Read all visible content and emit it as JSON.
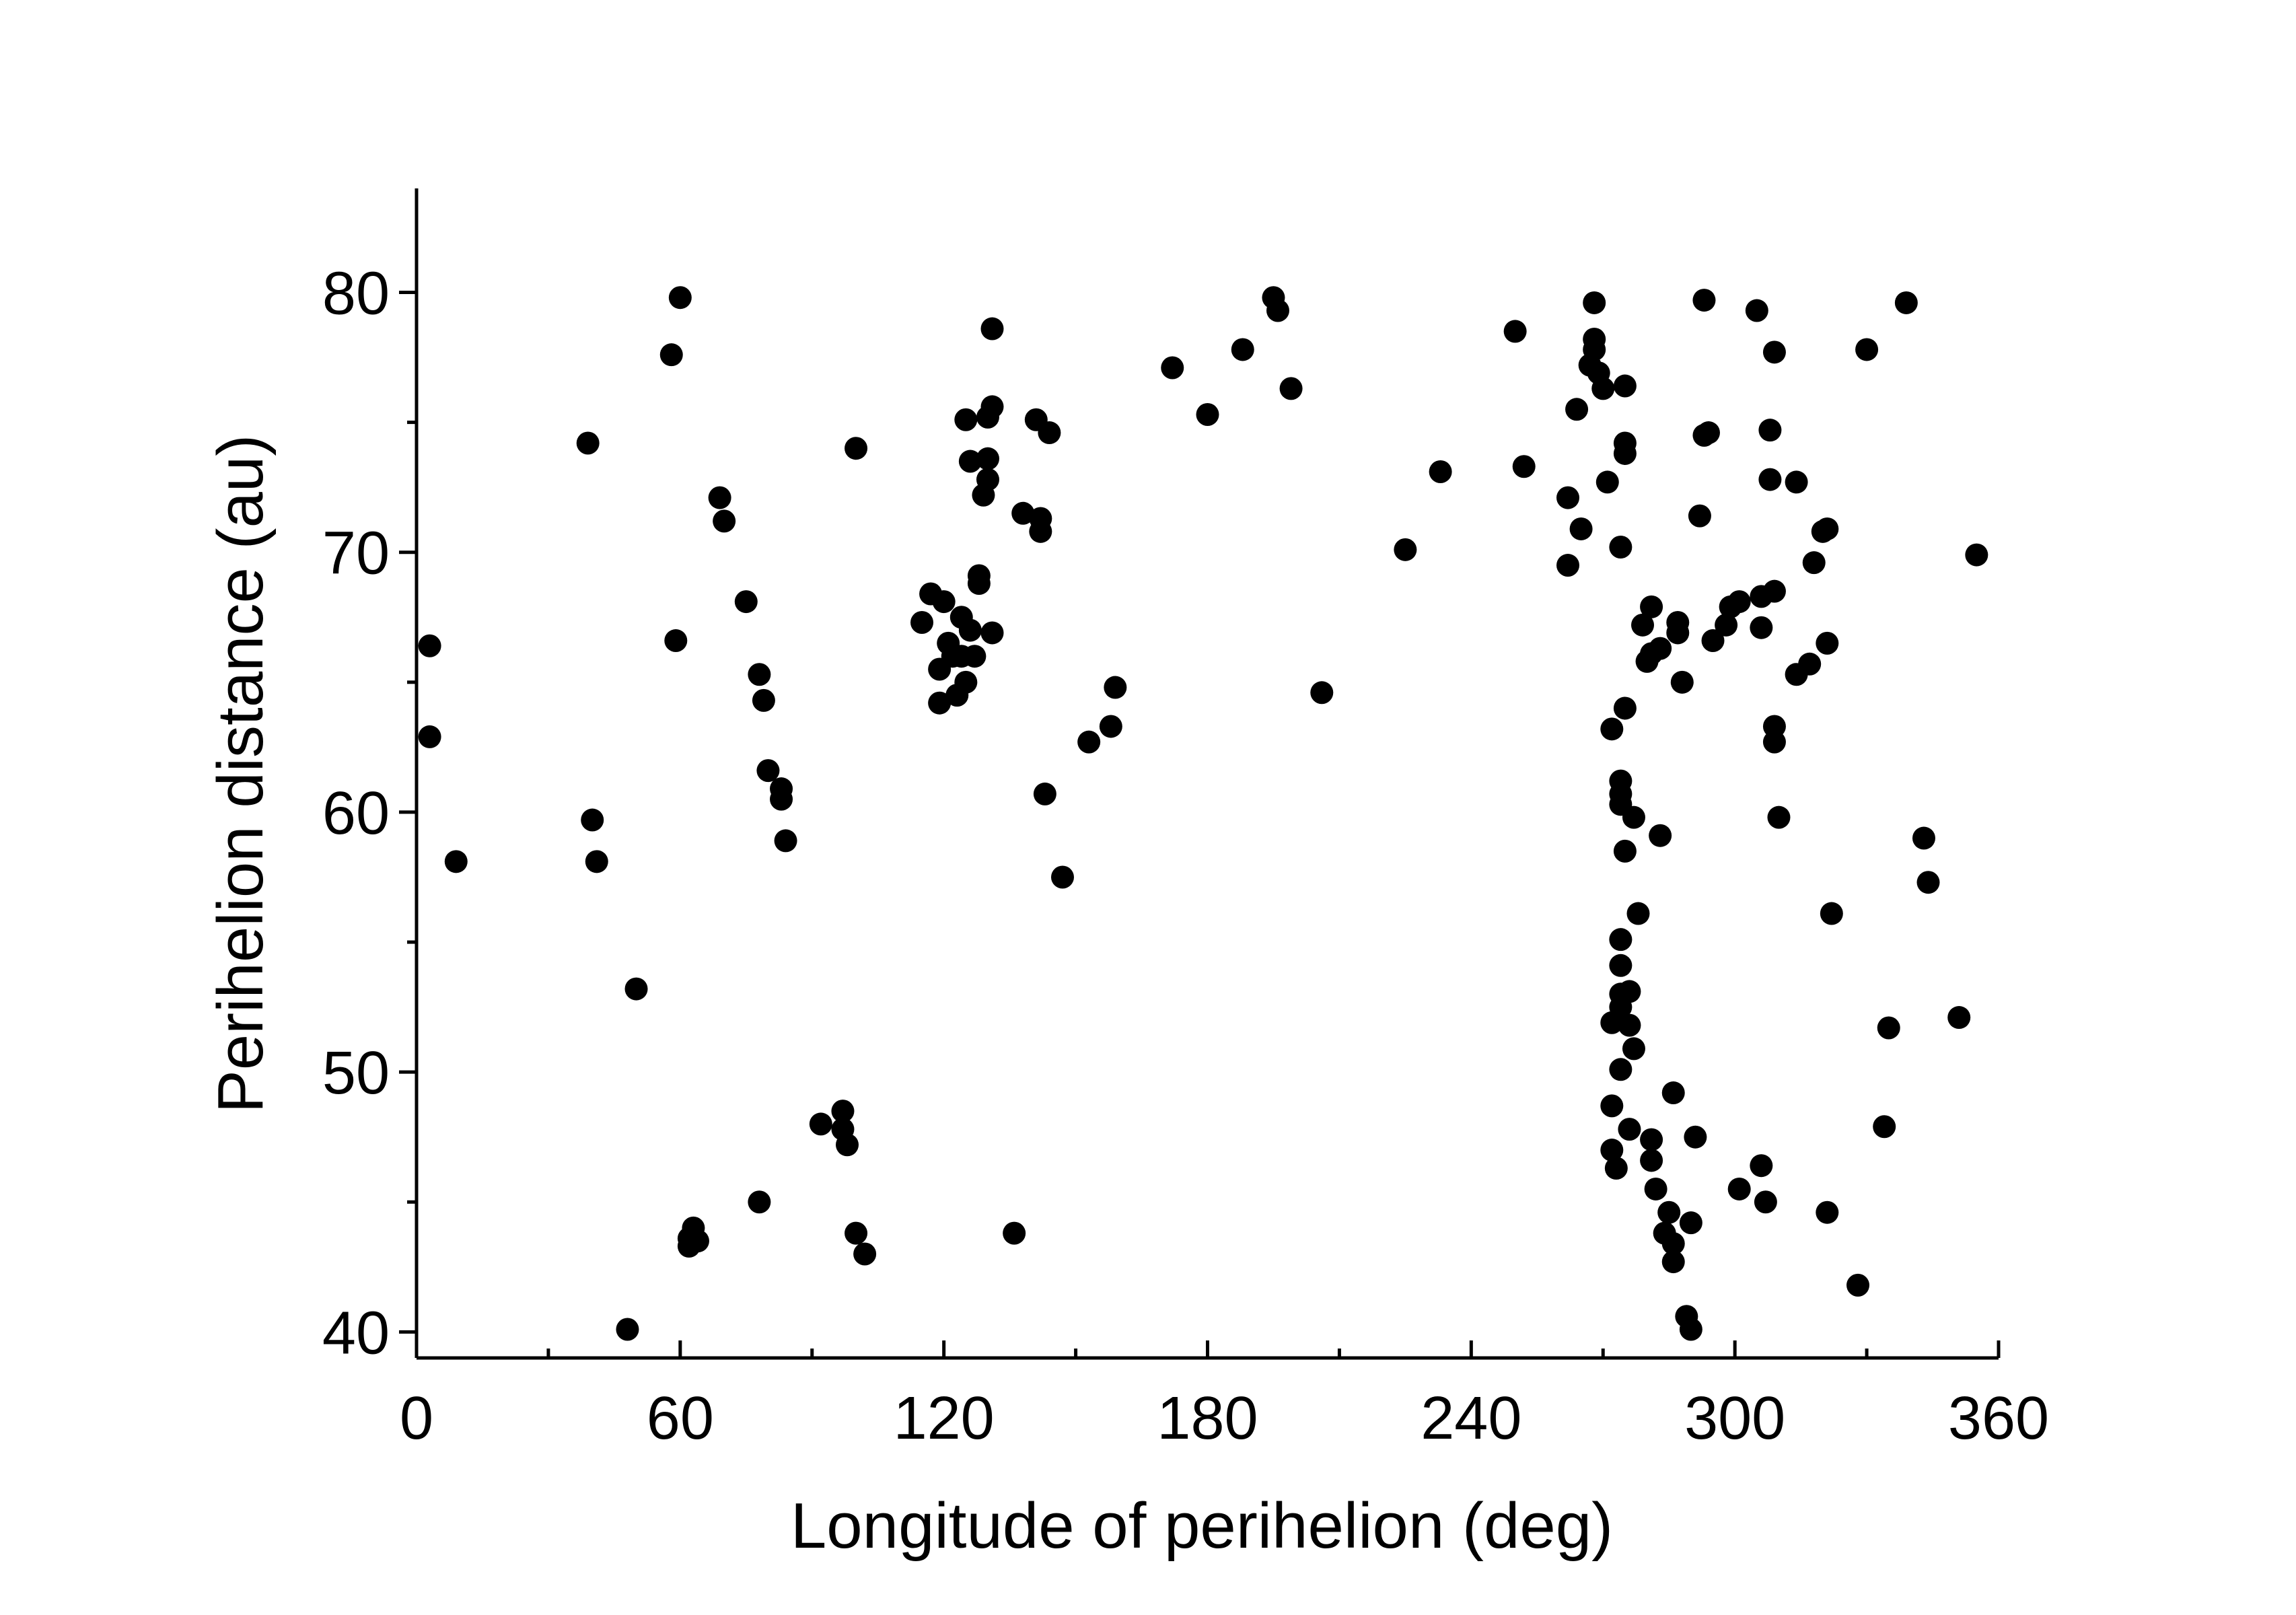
{
  "chart_data": {
    "type": "scatter",
    "title": "",
    "xlabel": "Longitude of perihelion (deg)",
    "ylabel": "Perihelion distance (au)",
    "xlim": [
      0,
      360
    ],
    "ylim": [
      39,
      84
    ],
    "xticks": [
      0,
      60,
      120,
      180,
      240,
      300,
      360
    ],
    "yticks": [
      40,
      50,
      60,
      70,
      80
    ],
    "grid": false,
    "legend": "none",
    "marker_color": "#000000",
    "series": [
      {
        "points": [
          [
            3,
            66.4
          ],
          [
            3,
            62.9
          ],
          [
            9,
            58.1
          ],
          [
            39,
            74.2
          ],
          [
            40,
            59.7
          ],
          [
            41,
            58.1
          ],
          [
            48,
            40.1
          ],
          [
            50,
            53.2
          ],
          [
            58,
            77.6
          ],
          [
            59,
            66.6
          ],
          [
            60,
            79.8
          ],
          [
            62,
            43.6
          ],
          [
            63,
            44.0
          ],
          [
            64,
            43.5
          ],
          [
            62,
            43.3
          ],
          [
            69,
            72.1
          ],
          [
            70,
            71.2
          ],
          [
            75,
            68.1
          ],
          [
            78,
            45.0
          ],
          [
            78,
            65.3
          ],
          [
            79,
            64.3
          ],
          [
            80,
            61.6
          ],
          [
            83,
            60.9
          ],
          [
            83,
            60.5
          ],
          [
            84,
            58.9
          ],
          [
            92,
            48.0
          ],
          [
            97,
            48.5
          ],
          [
            97,
            47.8
          ],
          [
            98,
            47.2
          ],
          [
            100,
            74.0
          ],
          [
            100,
            43.8
          ],
          [
            102,
            43.0
          ],
          [
            115,
            67.3
          ],
          [
            117,
            68.4
          ],
          [
            119,
            64.2
          ],
          [
            119,
            65.5
          ],
          [
            120,
            68.1
          ],
          [
            121,
            66.5
          ],
          [
            122,
            66.0
          ],
          [
            123,
            64.5
          ],
          [
            124,
            67.5
          ],
          [
            124,
            66.0
          ],
          [
            125,
            75.1
          ],
          [
            125,
            65.0
          ],
          [
            126,
            73.5
          ],
          [
            126,
            67.0
          ],
          [
            127,
            66.0
          ],
          [
            128,
            69.1
          ],
          [
            128,
            68.8
          ],
          [
            129,
            72.2
          ],
          [
            130,
            72.8
          ],
          [
            130,
            73.6
          ],
          [
            130,
            75.2
          ],
          [
            131,
            75.6
          ],
          [
            131,
            78.6
          ],
          [
            131,
            66.9
          ],
          [
            136,
            43.8
          ],
          [
            138,
            71.5
          ],
          [
            141,
            75.1
          ],
          [
            142,
            71.3
          ],
          [
            142,
            70.8
          ],
          [
            143,
            60.7
          ],
          [
            144,
            74.6
          ],
          [
            147,
            57.5
          ],
          [
            153,
            62.7
          ],
          [
            158,
            63.3
          ],
          [
            159,
            64.8
          ],
          [
            172,
            77.1
          ],
          [
            180,
            75.3
          ],
          [
            188,
            77.8
          ],
          [
            195,
            79.8
          ],
          [
            196,
            79.3
          ],
          [
            199,
            76.3
          ],
          [
            206,
            64.6
          ],
          [
            225,
            70.1
          ],
          [
            233,
            73.1
          ],
          [
            250,
            78.5
          ],
          [
            252,
            73.3
          ],
          [
            262,
            72.1
          ],
          [
            262,
            69.5
          ],
          [
            264,
            75.5
          ],
          [
            265,
            70.9
          ],
          [
            267,
            77.2
          ],
          [
            268,
            77.8
          ],
          [
            268,
            78.2
          ],
          [
            268,
            79.6
          ],
          [
            269,
            76.9
          ],
          [
            270,
            76.3
          ],
          [
            271,
            72.7
          ],
          [
            272,
            63.2
          ],
          [
            272,
            51.9
          ],
          [
            272,
            48.7
          ],
          [
            272,
            47.0
          ],
          [
            273,
            46.3
          ],
          [
            274,
            60.3
          ],
          [
            274,
            61.2
          ],
          [
            274,
            60.7
          ],
          [
            274,
            55.1
          ],
          [
            274,
            54.1
          ],
          [
            274,
            53.0
          ],
          [
            274,
            52.5
          ],
          [
            274,
            50.1
          ],
          [
            274,
            70.2
          ],
          [
            275,
            76.4
          ],
          [
            275,
            74.2
          ],
          [
            275,
            73.8
          ],
          [
            275,
            64.0
          ],
          [
            275,
            58.5
          ],
          [
            276,
            53.1
          ],
          [
            276,
            51.8
          ],
          [
            276,
            47.8
          ],
          [
            277,
            50.9
          ],
          [
            277,
            59.8
          ],
          [
            278,
            56.1
          ],
          [
            279,
            67.2
          ],
          [
            280,
            65.8
          ],
          [
            281,
            66.1
          ],
          [
            281,
            67.9
          ],
          [
            281,
            47.4
          ],
          [
            281,
            46.6
          ],
          [
            282,
            45.5
          ],
          [
            283,
            66.3
          ],
          [
            283,
            59.1
          ],
          [
            284,
            43.8
          ],
          [
            285,
            44.6
          ],
          [
            286,
            43.4
          ],
          [
            286,
            42.7
          ],
          [
            286,
            49.2
          ],
          [
            287,
            67.3
          ],
          [
            287,
            66.9
          ],
          [
            288,
            65.0
          ],
          [
            289,
            40.6
          ],
          [
            290,
            40.1
          ],
          [
            290,
            44.2
          ],
          [
            291,
            47.5
          ],
          [
            292,
            71.4
          ],
          [
            293,
            79.7
          ],
          [
            293,
            74.5
          ],
          [
            294,
            74.6
          ],
          [
            295,
            66.6
          ],
          [
            298,
            67.2
          ],
          [
            299,
            67.9
          ],
          [
            301,
            68.1
          ],
          [
            301,
            45.5
          ],
          [
            305,
            79.3
          ],
          [
            306,
            68.3
          ],
          [
            306,
            67.1
          ],
          [
            306,
            46.4
          ],
          [
            307,
            45.0
          ],
          [
            308,
            74.7
          ],
          [
            308,
            72.8
          ],
          [
            309,
            68.5
          ],
          [
            309,
            63.3
          ],
          [
            309,
            62.7
          ],
          [
            309,
            77.7
          ],
          [
            310,
            59.8
          ],
          [
            314,
            72.7
          ],
          [
            314,
            65.3
          ],
          [
            317,
            65.7
          ],
          [
            318,
            69.6
          ],
          [
            320,
            70.8
          ],
          [
            321,
            70.9
          ],
          [
            321,
            66.5
          ],
          [
            321,
            44.6
          ],
          [
            322,
            56.1
          ],
          [
            328,
            41.8
          ],
          [
            330,
            77.8
          ],
          [
            334,
            47.9
          ],
          [
            335,
            51.7
          ],
          [
            339,
            79.6
          ],
          [
            343,
            59.0
          ],
          [
            344,
            57.3
          ],
          [
            351,
            52.1
          ],
          [
            355,
            69.9
          ]
        ]
      }
    ]
  }
}
